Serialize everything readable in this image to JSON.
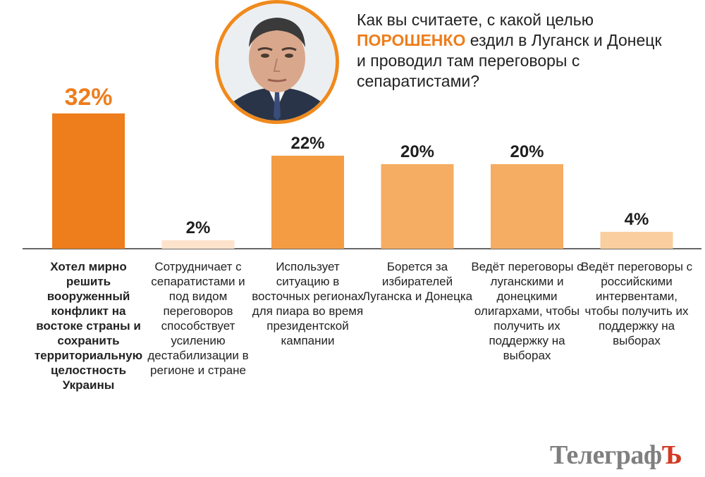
{
  "question": {
    "before": "Как вы считаете, с какой целью ",
    "highlight": "ПОРОШЕНКО",
    "after": " ездил в Луганск и Донецк и проводил там переговоры с сепаратистами?"
  },
  "logo": {
    "main": "Телеграф",
    "accent": "Ъ"
  },
  "chart_data": {
    "type": "bar",
    "categories": [
      "Хотел мирно решить вооруженный конфликт на востоке страны и сохранить территориальную целостность Украины",
      "Сотрудничает с сепаратистами и под видом переговоров способствует усилению дестабилизации в регионе и стране",
      "Использует ситуацию в восточных регионах для пиара во время президентской кампании",
      "Борется за избирателей Луганска и Донецка",
      "Ведёт переговоры с луганскими и донецкими олигархами, чтобы получить их поддержку на выборах",
      "Ведёт переговоры с российскими интервентами, чтобы получить их поддержку на выборах"
    ],
    "values": [
      32,
      2,
      22,
      20,
      20,
      4
    ],
    "value_labels": [
      "32%",
      "2%",
      "22%",
      "20%",
      "20%",
      "4%"
    ],
    "ylim": [
      0,
      35
    ],
    "grid": false,
    "colors": [
      "#ee7d1c",
      "#fde3cc",
      "#f39c44",
      "#f5ac63",
      "#f5ac63",
      "#f9cf9f"
    ],
    "baseline_color": "#333333"
  }
}
